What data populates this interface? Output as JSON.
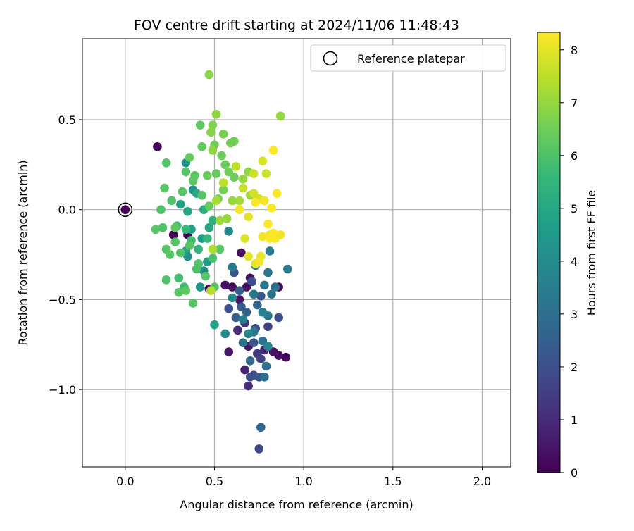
{
  "chart_data": {
    "type": "scatter",
    "title": "FOV centre drift starting at 2024/11/06 11:48:43",
    "xlabel": "Angular distance from reference (arcmin)",
    "ylabel": "Rotation from reference (arcmin)",
    "xlim": [
      -0.24,
      2.16
    ],
    "ylim": [
      -1.43,
      0.95
    ],
    "x_ticks": [
      0.0,
      0.5,
      1.0,
      1.5,
      2.0
    ],
    "x_tick_labels": [
      "0.0",
      "0.5",
      "1.0",
      "1.5",
      "2.0"
    ],
    "y_ticks": [
      0.5,
      0.0,
      -0.5,
      -1.0
    ],
    "y_tick_labels": [
      "0.5",
      "0.0",
      "−0.5",
      "−1.0"
    ],
    "grid": true,
    "legend": {
      "placement": "top-right",
      "entries": [
        "Reference platepar"
      ]
    },
    "colorbar": {
      "label": "Hours from first FF file",
      "colormap": "viridis",
      "range": [
        0,
        8.33
      ],
      "ticks": [
        0,
        1,
        2,
        3,
        4,
        5,
        6,
        7,
        8
      ],
      "tick_labels": [
        "0",
        "1",
        "2",
        "3",
        "4",
        "5",
        "6",
        "7",
        "8"
      ]
    },
    "reference_point": {
      "x": 0.0,
      "y": 0.0
    },
    "series": [
      {
        "points": [
          [
            0.18,
            0.35,
            0.1
          ],
          [
            0.27,
            -0.14,
            0.1
          ],
          [
            0.35,
            -0.14,
            0.1
          ],
          [
            0.47,
            -0.44,
            0.2
          ],
          [
            0.56,
            -0.42,
            0.3
          ],
          [
            0.6,
            -0.43,
            0.3
          ],
          [
            0.65,
            -0.24,
            0.3
          ],
          [
            0.68,
            -0.43,
            0.3
          ],
          [
            0.64,
            -0.5,
            0.4
          ],
          [
            0.7,
            -0.38,
            0.4
          ],
          [
            0.86,
            -0.43,
            0.3
          ],
          [
            0.9,
            -0.82,
            0.2
          ],
          [
            0.86,
            -0.81,
            0.3
          ],
          [
            0.83,
            -0.79,
            0.4
          ],
          [
            0.69,
            -0.76,
            0.6
          ],
          [
            0.58,
            -0.79,
            0.5
          ],
          [
            0.67,
            -0.89,
            0.8
          ],
          [
            0.69,
            -0.98,
            1.0
          ],
          [
            0.78,
            -0.78,
            0.9
          ],
          [
            0.63,
            -0.67,
            1.1
          ],
          [
            0.67,
            -0.63,
            1.2
          ],
          [
            0.74,
            -0.8,
            1.4
          ],
          [
            0.75,
            -1.33,
            1.8
          ],
          [
            0.76,
            -0.83,
            1.6
          ],
          [
            0.72,
            -0.92,
            1.9
          ],
          [
            0.7,
            -0.93,
            2.0
          ],
          [
            0.86,
            -0.6,
            2.0
          ],
          [
            0.8,
            -0.65,
            1.7
          ],
          [
            0.72,
            -0.74,
            2.1
          ],
          [
            0.73,
            -0.66,
            2.2
          ],
          [
            0.65,
            -0.54,
            2.3
          ],
          [
            0.75,
            -0.93,
            2.3
          ],
          [
            0.61,
            -0.35,
            2.1
          ],
          [
            0.71,
            -0.4,
            2.0
          ],
          [
            0.76,
            -0.48,
            2.2
          ],
          [
            0.64,
            -0.45,
            2.4
          ],
          [
            0.58,
            -0.55,
            2.0
          ],
          [
            0.62,
            -0.6,
            2.5
          ],
          [
            0.68,
            -0.57,
            2.6
          ],
          [
            0.74,
            -0.53,
            2.7
          ],
          [
            0.76,
            -1.21,
            2.7
          ],
          [
            0.7,
            -0.84,
            2.8
          ],
          [
            0.79,
            -0.87,
            3.0
          ],
          [
            0.78,
            -0.93,
            3.0
          ],
          [
            0.77,
            -0.73,
            3.1
          ],
          [
            0.72,
            -0.68,
            3.3
          ],
          [
            0.78,
            -0.42,
            3.3
          ],
          [
            0.82,
            -0.47,
            3.2
          ],
          [
            0.66,
            -0.74,
            3.2
          ],
          [
            0.6,
            -0.32,
            3.4
          ],
          [
            0.72,
            -0.47,
            3.5
          ],
          [
            0.8,
            -0.59,
            3.4
          ],
          [
            0.84,
            -0.43,
            3.1
          ],
          [
            0.91,
            -0.33,
            3.4
          ],
          [
            0.8,
            -0.35,
            3.3
          ],
          [
            0.81,
            -0.23,
            3.5
          ],
          [
            0.73,
            -0.31,
            3.6
          ],
          [
            0.66,
            -0.61,
            3.6
          ],
          [
            0.69,
            -0.69,
            3.8
          ],
          [
            0.77,
            -0.57,
            3.7
          ],
          [
            0.8,
            -0.76,
            3.9
          ],
          [
            0.6,
            -0.49,
            3.9
          ],
          [
            0.56,
            -0.69,
            4.0
          ],
          [
            0.58,
            -0.12,
            3.9
          ],
          [
            0.44,
            -0.34,
            4.1
          ],
          [
            0.35,
            -0.26,
            4.2
          ],
          [
            0.34,
            0.26,
            4.3
          ],
          [
            0.38,
            0.11,
            4.4
          ],
          [
            0.42,
            -0.43,
            4.3
          ],
          [
            0.46,
            -0.29,
            4.5
          ],
          [
            0.5,
            -0.64,
            4.8
          ],
          [
            0.43,
            -0.16,
            4.6
          ],
          [
            0.37,
            -0.11,
            4.7
          ],
          [
            0.34,
            -0.23,
            4.7
          ],
          [
            0.31,
            0.03,
            4.8
          ],
          [
            0.35,
            -0.01,
            4.9
          ],
          [
            0.4,
            0.09,
            5.0
          ],
          [
            0.44,
            0.0,
            5.2
          ],
          [
            0.47,
            -0.1,
            5.0
          ],
          [
            0.49,
            -0.06,
            5.3
          ],
          [
            0.46,
            -0.16,
            5.5
          ],
          [
            0.41,
            -0.22,
            5.4
          ],
          [
            0.34,
            -0.11,
            5.6
          ],
          [
            0.3,
            -0.38,
            5.8
          ],
          [
            0.29,
            -0.09,
            5.6
          ],
          [
            0.33,
            -0.43,
            5.7
          ],
          [
            0.37,
            -0.17,
            5.8
          ],
          [
            0.4,
            -0.33,
            5.9
          ],
          [
            0.49,
            -0.27,
            5.9
          ],
          [
            0.5,
            -0.43,
            6.1
          ],
          [
            0.53,
            -0.22,
            6.1
          ],
          [
            0.45,
            -0.37,
            6.1
          ],
          [
            0.41,
            -0.3,
            6.0
          ],
          [
            0.36,
            -0.2,
            6.1
          ],
          [
            0.31,
            -0.24,
            6.0
          ],
          [
            0.28,
            -0.18,
            6.1
          ],
          [
            0.23,
            -0.22,
            6.1
          ],
          [
            0.25,
            -0.25,
            6.1
          ],
          [
            0.23,
            -0.39,
            6.0
          ],
          [
            0.28,
            -0.1,
            6.2
          ],
          [
            0.32,
            0.1,
            6.1
          ],
          [
            0.38,
            0.16,
            6.2
          ],
          [
            0.43,
            0.08,
            6.1
          ],
          [
            0.47,
            0.02,
            6.3
          ],
          [
            0.52,
            0.06,
            6.5
          ],
          [
            0.55,
            0.11,
            6.6
          ],
          [
            0.58,
            0.21,
            6.5
          ],
          [
            0.61,
            0.18,
            6.4
          ],
          [
            0.56,
            0.25,
            6.4
          ],
          [
            0.51,
            0.2,
            6.3
          ],
          [
            0.46,
            0.19,
            6.4
          ],
          [
            0.39,
            0.19,
            6.2
          ],
          [
            0.34,
            0.21,
            6.1
          ],
          [
            0.26,
            0.05,
            6.0
          ],
          [
            0.22,
            0.12,
            6.1
          ],
          [
            0.2,
            0.0,
            6.0
          ],
          [
            0.17,
            -0.11,
            6.1
          ],
          [
            0.21,
            -0.1,
            6.0
          ],
          [
            0.3,
            -0.46,
            6.1
          ],
          [
            0.34,
            -0.45,
            6.2
          ],
          [
            0.38,
            -0.52,
            6.1
          ],
          [
            0.23,
            0.26,
            6.1
          ],
          [
            0.36,
            0.29,
            6.3
          ],
          [
            0.43,
            0.35,
            6.3
          ],
          [
            0.42,
            0.47,
            6.2
          ],
          [
            0.5,
            0.36,
            6.5
          ],
          [
            0.54,
            0.3,
            6.4
          ],
          [
            0.59,
            0.37,
            6.6
          ],
          [
            0.61,
            0.38,
            6.5
          ],
          [
            0.55,
            0.42,
            6.6
          ],
          [
            0.49,
            0.47,
            6.7
          ],
          [
            0.51,
            0.53,
            6.9
          ],
          [
            0.48,
            0.43,
            6.8
          ],
          [
            0.49,
            0.33,
            6.9
          ],
          [
            0.47,
            0.75,
            6.8
          ],
          [
            0.87,
            0.52,
            7.0
          ],
          [
            0.69,
            0.21,
            6.9
          ],
          [
            0.66,
            0.17,
            7.0
          ],
          [
            0.7,
            0.08,
            7.1
          ],
          [
            0.64,
            0.05,
            7.2
          ],
          [
            0.6,
            0.05,
            7.0
          ],
          [
            0.57,
            -0.05,
            7.0
          ],
          [
            0.53,
            -0.06,
            7.1
          ],
          [
            0.51,
            0.05,
            7.2
          ],
          [
            0.49,
            -0.22,
            7.3
          ],
          [
            0.48,
            -0.45,
            7.4
          ],
          [
            0.55,
            0.15,
            7.5
          ],
          [
            0.62,
            0.24,
            7.5
          ],
          [
            0.66,
            0.12,
            7.6
          ],
          [
            0.72,
            0.2,
            7.7
          ],
          [
            0.75,
            0.06,
            7.8
          ],
          [
            0.79,
            0.2,
            7.7
          ],
          [
            0.77,
            0.27,
            7.8
          ],
          [
            0.72,
            0.09,
            7.8
          ],
          [
            0.67,
            -0.16,
            7.9
          ],
          [
            0.69,
            -0.26,
            8.0
          ],
          [
            0.73,
            -0.3,
            8.0
          ],
          [
            0.76,
            -0.26,
            8.1
          ],
          [
            0.69,
            -0.04,
            8.0
          ],
          [
            0.64,
            0.0,
            8.2
          ],
          [
            0.75,
            -0.29,
            8.2
          ],
          [
            0.77,
            -0.15,
            8.2
          ],
          [
            0.8,
            -0.08,
            8.3
          ],
          [
            0.81,
            -0.14,
            8.2
          ],
          [
            0.83,
            -0.13,
            8.3
          ],
          [
            0.82,
            0.01,
            8.3
          ],
          [
            0.81,
            -0.16,
            8.3
          ],
          [
            0.84,
            -0.16,
            8.3
          ],
          [
            0.87,
            -0.14,
            8.2
          ],
          [
            0.85,
            0.09,
            8.3
          ],
          [
            0.83,
            0.33,
            8.3
          ],
          [
            0.78,
            0.05,
            8.2
          ],
          [
            0.73,
            0.04,
            8.3
          ]
        ]
      }
    ],
    "point_fields": [
      "x",
      "y",
      "hours"
    ]
  },
  "colors": {
    "grid": "#b0b0b0",
    "axes": "#000000",
    "viridis_stops": [
      "#440154",
      "#482878",
      "#3e4a89",
      "#31688e",
      "#26828e",
      "#1f9e89",
      "#35b779",
      "#6ece58",
      "#b5de2b",
      "#fde725"
    ]
  }
}
